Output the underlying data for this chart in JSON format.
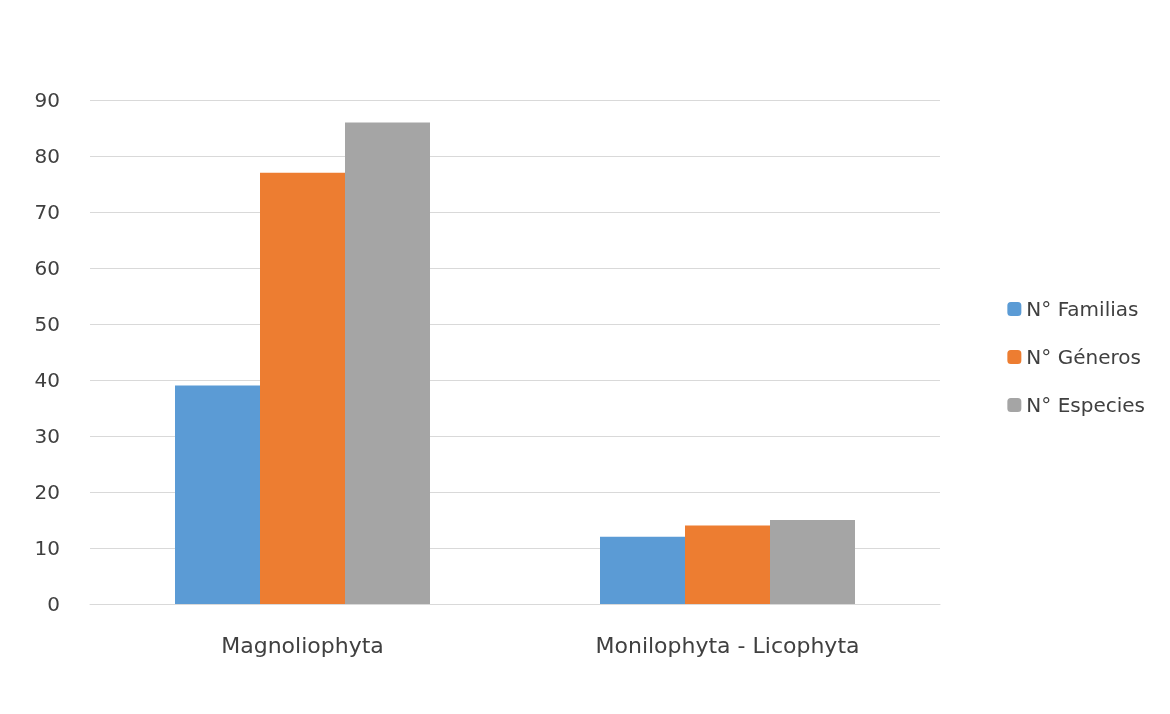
{
  "chart_data": {
    "type": "bar",
    "categories": [
      "Magnoliophyta",
      "Monilophyta - Licophyta"
    ],
    "series": [
      {
        "name": "N° Familias",
        "color": "#5b9bd5",
        "values": [
          39,
          12
        ]
      },
      {
        "name": "N° Géneros",
        "color": "#ed7d31",
        "values": [
          77,
          14
        ]
      },
      {
        "name": "N° Especies",
        "color": "#a5a5a5",
        "values": [
          86,
          15
        ]
      }
    ],
    "ylim": [
      0,
      90
    ],
    "yticks": [
      0,
      10,
      20,
      30,
      40,
      50,
      60,
      70,
      80,
      90
    ],
    "grid": "y",
    "legend": "right"
  }
}
